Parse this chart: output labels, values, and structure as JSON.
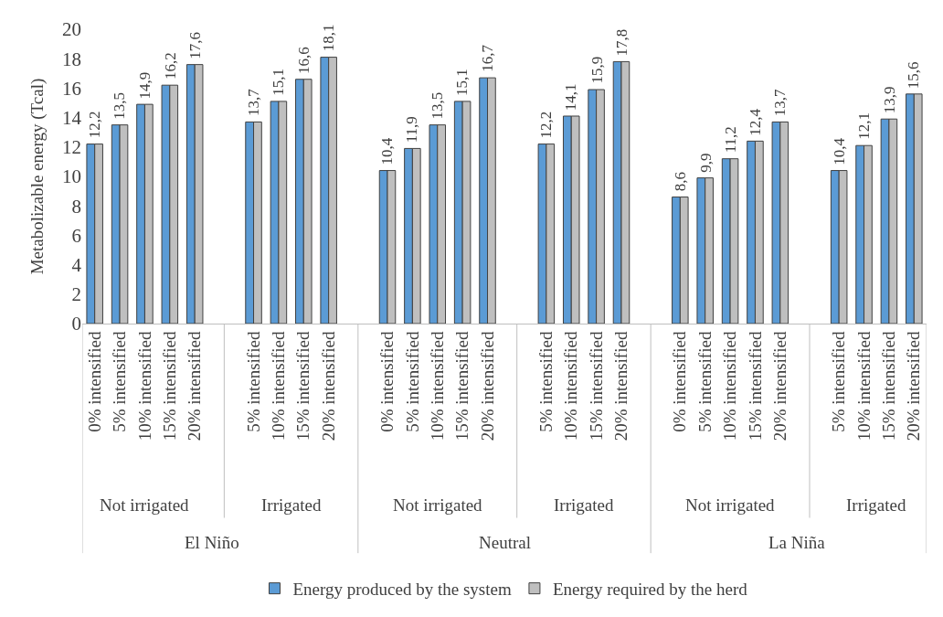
{
  "chart_data": {
    "type": "bar",
    "ylabel": "Metabolizable energy (Tcal)",
    "categories": [
      "0% intensified",
      "5% intensified",
      "10% intensified",
      "15% intensified",
      "20% intensified",
      null,
      "5% intensified",
      "10% intensified",
      "15% intensified",
      "20% intensified",
      null,
      "0% intensified",
      "5% intensified",
      "10% intensified",
      "15% intensified",
      "20% intensified",
      null,
      "5% intensified",
      "10% intensified",
      "15% intensified",
      "20% intensified",
      null,
      "0% intensified",
      "5% intensified",
      "10% intensified",
      "15% intensified",
      "20% intensified",
      null,
      "5% intensified",
      "10% intensified",
      "15% intensified",
      "20% intensified"
    ],
    "series": [
      {
        "name": "Energy produced by the system",
        "color": "#5b9bd5",
        "values": [
          12.2,
          13.5,
          14.9,
          16.2,
          17.6,
          null,
          13.7,
          15.1,
          16.6,
          18.1,
          null,
          10.4,
          11.9,
          13.5,
          15.1,
          16.7,
          null,
          12.2,
          14.1,
          15.9,
          17.8,
          null,
          8.6,
          9.9,
          11.2,
          12.4,
          13.7,
          null,
          10.4,
          12.1,
          13.9,
          15.6
        ],
        "value_labels": [
          "12,2",
          "13,5",
          "14,9",
          "16,2",
          "17,6",
          null,
          "13,7",
          "15,1",
          "16,6",
          "18,1",
          null,
          "10,4",
          "11,9",
          "13,5",
          "15,1",
          "16,7",
          null,
          "12,2",
          "14,1",
          "15,9",
          "17,8",
          null,
          "8,6",
          "9,9",
          "11,2",
          "12,4",
          "13,7",
          null,
          "10,4",
          "12,1",
          "13,9",
          "15,6"
        ]
      },
      {
        "name": "Energy required by the herd",
        "color": "#bfbfbf",
        "values": [
          12.2,
          13.5,
          14.9,
          16.2,
          17.6,
          null,
          13.7,
          15.1,
          16.6,
          18.1,
          null,
          10.4,
          11.9,
          13.5,
          15.1,
          16.7,
          null,
          12.2,
          14.1,
          15.9,
          17.8,
          null,
          8.6,
          9.9,
          11.2,
          12.4,
          13.7,
          null,
          10.4,
          12.1,
          13.9,
          15.6
        ]
      }
    ],
    "annotations": [
      "Not irrigated",
      "Irrigated",
      "Not irrigated",
      "Irrigated",
      "Not irrigated",
      "Irrigated",
      "El Niño",
      "Neutral",
      "La Niña"
    ],
    "ylim": [
      0,
      20
    ],
    "yticks": [
      0,
      2,
      4,
      6,
      8,
      10,
      12,
      14,
      16,
      18,
      20
    ],
    "legend": "bottom"
  }
}
